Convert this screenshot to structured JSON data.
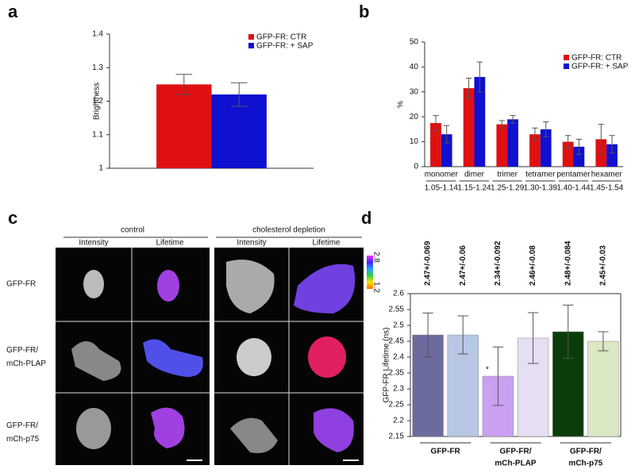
{
  "chart_data": [
    {
      "type": "bar",
      "panel": "a",
      "ylabel": "Brightness",
      "categories": [
        null
      ],
      "series": [
        {
          "name": "GFP-FR: CTR",
          "color": "#e01010",
          "values": [
            1.25
          ],
          "errors": [
            0.03
          ]
        },
        {
          "name": "GFP-FR: + SAP",
          "color": "#1010d0",
          "values": [
            1.22
          ],
          "errors": [
            0.035
          ]
        }
      ],
      "ylim": [
        1,
        1.4
      ],
      "yticks": [
        1,
        1.1,
        1.2,
        1.3,
        1.4
      ],
      "legend": "upper right"
    },
    {
      "type": "bar",
      "panel": "b",
      "ylabel": "%",
      "categories": [
        "monomer",
        "dimer",
        "trimer",
        "tetramer",
        "pentamer",
        "hexamer"
      ],
      "category_ranges": [
        "1.05-1.14",
        "1.15-1.24",
        "1.25-1.29",
        "1.30-1.39",
        "1.40-1.44",
        "1.45-1.54"
      ],
      "series": [
        {
          "name": "GFP-FR: CTR",
          "color": "#e01010",
          "values": [
            17.5,
            31.5,
            17,
            13,
            10,
            11
          ],
          "errors": [
            3,
            4,
            1.5,
            2.5,
            2.5,
            6
          ]
        },
        {
          "name": "GFP-FR: + SAP",
          "color": "#1010d0",
          "values": [
            13,
            36,
            19,
            15,
            8,
            9
          ],
          "errors": [
            3.5,
            6,
            1.5,
            3,
            3,
            3.5
          ]
        }
      ],
      "ylim": [
        0,
        50
      ],
      "yticks": [
        0,
        10,
        20,
        30,
        40,
        50
      ],
      "legend": "upper right"
    },
    {
      "type": "bar",
      "panel": "d",
      "ylabel": "GFP-FR Lifetime (ns)",
      "values": [
        2.47,
        2.47,
        2.34,
        2.46,
        2.48,
        2.45
      ],
      "errors": [
        0.069,
        0.06,
        0.092,
        0.08,
        0.084,
        0.03
      ],
      "value_labels": [
        "2.47+/-0.069",
        "2.47+/-0.06",
        "2.34+/-0.092",
        "2.46+/-0.08",
        "2.48+/-0.084",
        "2.45+/-0.03"
      ],
      "colors": [
        "#6b6b9e",
        "#b8c8e4",
        "#c9a0f2",
        "#e6def2",
        "#0b3d0b",
        "#dbe8c4"
      ],
      "significance": [
        null,
        null,
        "*",
        null,
        null,
        null
      ],
      "groups": [
        [
          "GFP-FR"
        ],
        [
          "GFP-FR/",
          "mCh-PLAP"
        ],
        [
          "GFP-FR/",
          "mCh-p75"
        ]
      ],
      "ylim": [
        2.15,
        2.6
      ],
      "yticks": [
        2.15,
        2.2,
        2.25,
        2.3,
        2.35,
        2.4,
        2.45,
        2.5,
        2.55,
        2.6
      ]
    }
  ],
  "panel_c": {
    "panel": "c",
    "conditions": [
      "control",
      "cholesterol depletion"
    ],
    "channels": [
      "Intensity",
      "Lifetime"
    ],
    "rows": [
      [
        "GFP-FR"
      ],
      [
        "GFP-FR/",
        "mCh-PLAP"
      ],
      [
        "GFP-FR/",
        "mCh-p75"
      ]
    ],
    "colorbar_ticks": [
      2.8,
      1.2
    ]
  }
}
